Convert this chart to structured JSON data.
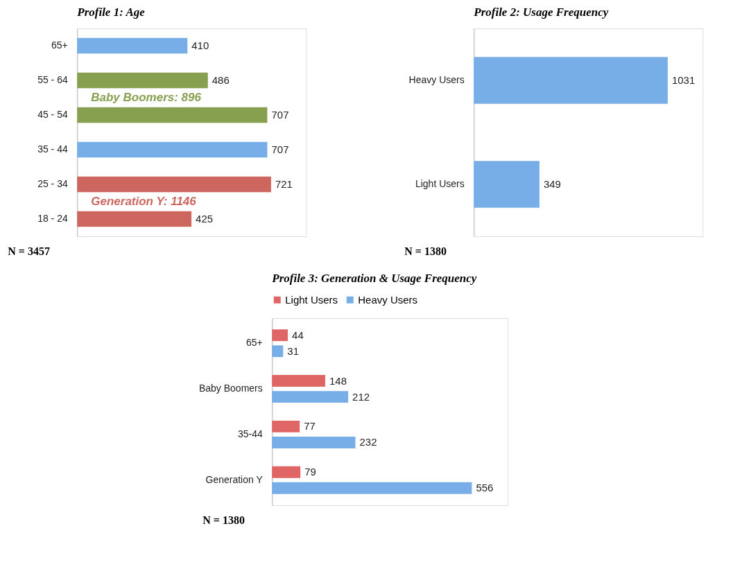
{
  "chart_data": [
    {
      "type": "bar",
      "orientation": "horizontal",
      "title": "Profile 1: Age",
      "categories": [
        "65+",
        "55 - 64",
        "45 - 54",
        "35 - 44",
        "25 - 34",
        "18 - 24"
      ],
      "values": [
        410,
        486,
        707,
        707,
        721,
        425
      ],
      "colors": [
        "#78aee8",
        "#87a04f",
        "#87a04f",
        "#78aee8",
        "#cd665f",
        "#cd665f"
      ],
      "data_labels": true,
      "annotations": [
        "Baby Boomers: 896",
        "Generation Y:   1146",
        "N = 3457"
      ]
    },
    {
      "type": "bar",
      "orientation": "horizontal",
      "title": "Profile 2: Usage Frequency",
      "categories": [
        "Heavy Users",
        "Light Users"
      ],
      "values": [
        1031,
        349
      ],
      "colors": [
        "#78aee8",
        "#78aee8"
      ],
      "data_labels": true,
      "annotations": [
        "N = 1380"
      ]
    },
    {
      "type": "bar",
      "orientation": "horizontal",
      "title": "Profile 3: Generation & Usage Frequency",
      "categories": [
        "65+",
        "Baby Boomers",
        "35-44",
        "Generation Y"
      ],
      "legend": "top",
      "data_labels": true,
      "series": [
        {
          "name": "Light Users",
          "color": "#e06666",
          "values": [
            44,
            148,
            77,
            79
          ]
        },
        {
          "name": "Heavy Users",
          "color": "#78aee8",
          "values": [
            31,
            212,
            232,
            556
          ]
        }
      ],
      "annotations": [
        "N = 1380"
      ]
    }
  ]
}
